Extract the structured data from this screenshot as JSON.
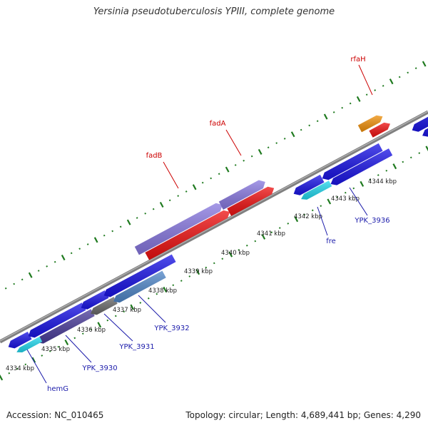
{
  "title": "Yersinia pseudotuberculosis YPIII, complete genome",
  "footer": {
    "accession": "Accession: NC_010465",
    "topology": "Topology: circular; Length: 4,689,441 bp; Genes: 4,290"
  },
  "colors": {
    "backbone": "#8c8c8c",
    "tick_major": "#1f7a1f",
    "tick_minor": "#1f7a1f",
    "forward_gene": "#ee1111",
    "reverse_gene": "#1a14e6",
    "fadB_operon": "#8878e0",
    "rfaH_gene": "#f0900a",
    "fre_gene": "#22d8ee",
    "ypk3930_gene": "#4a3c9a",
    "ypk3931_gene": "#6a6a6a",
    "ypk3932_gene": "#4f86c8",
    "label_red": "#cc0000",
    "label_blue": "#1a1aaa"
  },
  "scale_labels": [
    "4334 kbp",
    "4335 kbp",
    "4336 kbp",
    "4337 kbp",
    "4338 kbp",
    "4339 kbp",
    "4340 kbp",
    "4341 kbp",
    "4342 kbp",
    "4343 kbp",
    "4344 kbp"
  ],
  "gene_labels": {
    "rfaH": "rfaH",
    "fadA": "fadA",
    "fadB": "fadB",
    "fre": "fre",
    "ypk3936": "YPK_3936",
    "ypk3932": "YPK_3932",
    "ypk3931": "YPK_3931",
    "ypk3930": "YPK_3930",
    "hemG": "hemG"
  }
}
